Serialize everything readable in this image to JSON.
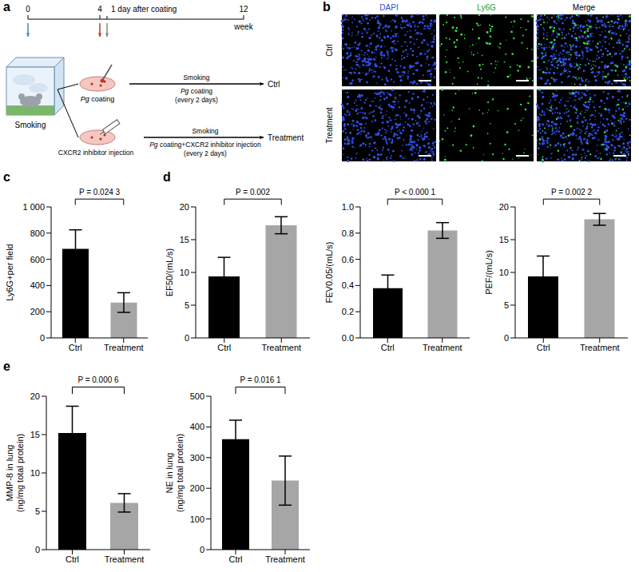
{
  "diagram": {
    "panel": "a",
    "timeline": {
      "ticks": [
        0,
        4,
        12
      ],
      "unit": "week",
      "note": "1 day after coating"
    },
    "italic": "Pg",
    "start_label": "Smoking",
    "ctrl_branch": {
      "procedure": "Pg coating",
      "schedule": [
        "Smoking",
        "Pg coating",
        "(every 2 days)"
      ],
      "group": "Ctrl"
    },
    "treatment_branch": {
      "procedure": "CXCR2 inhibitor injection",
      "schedule": [
        "Smoking",
        "Pg coating+CXCR2 inhibitor injection",
        "(every 2 days)"
      ],
      "group": "Treatment"
    }
  },
  "images": {
    "panel": "b",
    "columns": [
      "DAPI",
      "Ly6G",
      "Merge"
    ],
    "rows": [
      "Ctrl",
      "Treatment"
    ]
  },
  "chart_data": [
    {
      "panel": "c",
      "type": "bar",
      "categories": [
        "Ctrl",
        "Treatment"
      ],
      "values": [
        680,
        270
      ],
      "errors": [
        145,
        75
      ],
      "colors": [
        "#000000",
        "#a6a6a6"
      ],
      "y_label": "Ly6G+per field",
      "ylim": [
        0,
        1000
      ],
      "yticks": [
        0,
        200,
        400,
        600,
        800,
        {
          "value": 1000,
          "label": "1 000"
        }
      ],
      "annotation": "P = 0.024 3"
    },
    {
      "panel": "d",
      "type": "bar",
      "categories": [
        "Ctrl",
        "Treatment"
      ],
      "values": [
        9.4,
        17.2
      ],
      "errors": [
        2.9,
        1.3
      ],
      "colors": [
        "#000000",
        "#a6a6a6"
      ],
      "y_label": "EF50/(mL/s)",
      "ylim": [
        0,
        20
      ],
      "yticks": [
        0,
        5,
        10,
        15,
        20
      ],
      "annotation": "P = 0.002"
    },
    {
      "type": "bar",
      "categories": [
        "Ctrl",
        "Treatment"
      ],
      "values": [
        0.38,
        0.82
      ],
      "errors": [
        0.1,
        0.06
      ],
      "colors": [
        "#000000",
        "#a6a6a6"
      ],
      "y_label": "FEV0.05/(mL/s)",
      "ylim": [
        0,
        1
      ],
      "yticks": [
        {
          "value": 0,
          "label": "0.0"
        },
        0.2,
        0.4,
        0.6,
        0.8,
        {
          "value": 1,
          "label": "1.0"
        }
      ],
      "annotation": "P < 0.000 1"
    },
    {
      "type": "bar",
      "categories": [
        "Ctrl",
        "Treatment"
      ],
      "values": [
        9.4,
        18.1
      ],
      "errors": [
        3.1,
        0.9
      ],
      "colors": [
        "#000000",
        "#a6a6a6"
      ],
      "y_label": "PEF/(mL/s)",
      "ylim": [
        0,
        20
      ],
      "yticks": [
        0,
        5,
        10,
        15,
        20
      ],
      "annotation": "P = 0.002 2"
    },
    {
      "panel": "e",
      "type": "bar",
      "categories": [
        "Ctrl",
        "Treatment"
      ],
      "values": [
        15.2,
        6.1
      ],
      "errors": [
        3.5,
        1.2
      ],
      "colors": [
        "#000000",
        "#a6a6a6"
      ],
      "y_label": "MMP-8 in lung (ng/mg total protein)",
      "ylim": [
        0,
        20
      ],
      "yticks": [
        0,
        5,
        10,
        15,
        20
      ],
      "annotation": "P = 0.000 6"
    },
    {
      "type": "bar",
      "categories": [
        "Ctrl",
        "Treatment"
      ],
      "values": [
        360,
        225
      ],
      "errors": [
        62,
        80
      ],
      "colors": [
        "#000000",
        "#a6a6a6"
      ],
      "y_label": "NE in lung (ng/mg total protein)",
      "ylim": [
        0,
        500
      ],
      "yticks": [
        0,
        100,
        200,
        300,
        400,
        500
      ],
      "annotation": "P = 0.016 1"
    }
  ]
}
